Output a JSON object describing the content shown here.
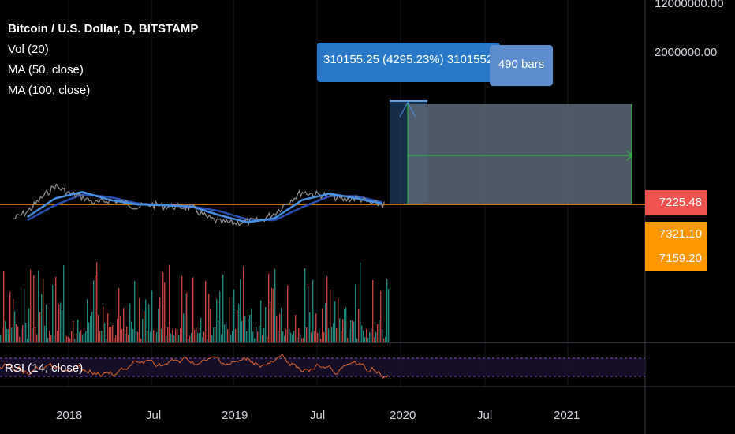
{
  "legend": {
    "title": "Bitcoin / U.S. Dollar, D, BITSTAMP",
    "vol": "Vol (20)",
    "ma50": "MA (50, close)",
    "ma100": "MA (100, close)"
  },
  "price_tags": [
    {
      "value": "7225.48",
      "color": "#ef5350"
    },
    {
      "value": "7321.10",
      "color": "#ff9800"
    },
    {
      "value": "7159.20",
      "color": "#ff9800"
    }
  ],
  "projection": {
    "text": "310155.25 (4295.23%) 3101552",
    "bars": "490 bars"
  },
  "rsi_label": "RSI (14, close)",
  "colors": {
    "background": "#000000",
    "price": "#8c8c8c",
    "ma50": "#4a90e2",
    "ma100": "#2a4fb0",
    "last_price_line": "#ff9800",
    "projection_green": "#26c839",
    "rsi": "#e0642a",
    "vol_up": "#26a69a",
    "vol_down": "#ef5350"
  },
  "chart_data": {
    "type": "line",
    "title": "Bitcoin / U.S. Dollar, D, BITSTAMP",
    "scale": "log",
    "y_ticks": [
      "12000000.00",
      "2000000.00"
    ],
    "x_ticks": [
      "2018",
      "Jul",
      "2019",
      "Jul",
      "2020",
      "Jul",
      "2021"
    ],
    "last_price": 7225.48,
    "ma_values": [
      7321.1,
      7159.2
    ],
    "projection": {
      "change": 310155.25,
      "percent": 4295.23,
      "bars": 490
    },
    "series": [
      {
        "name": "Bitcoin / U.S. Dollar",
        "x": [
          "2017-09",
          "2017-10",
          "2017-11",
          "2017-12",
          "2018-01",
          "2018-02",
          "2018-03",
          "2018-04",
          "2018-05",
          "2018-06",
          "2018-07",
          "2018-08",
          "2018-09",
          "2018-10",
          "2018-11",
          "2018-12",
          "2019-01",
          "2019-02",
          "2019-03",
          "2019-04",
          "2019-05",
          "2019-06",
          "2019-07",
          "2019-08",
          "2019-09",
          "2019-10",
          "2019-11",
          "2019-12"
        ],
        "values": [
          4200,
          5500,
          9000,
          14500,
          11000,
          9500,
          7500,
          8500,
          7800,
          6500,
          7200,
          6800,
          6600,
          6400,
          4500,
          3700,
          3600,
          3800,
          4000,
          5200,
          8000,
          11500,
          10500,
          10000,
          8600,
          9200,
          7500,
          7200
        ]
      },
      {
        "name": "MA (50, close)",
        "x": [
          "2017-10",
          "2017-12",
          "2018-02",
          "2018-04",
          "2018-06",
          "2018-08",
          "2018-10",
          "2018-12",
          "2019-02",
          "2019-04",
          "2019-06",
          "2019-08",
          "2019-10",
          "2019-12"
        ],
        "values": [
          4500,
          9000,
          11500,
          8500,
          7200,
          7000,
          6600,
          4800,
          3700,
          4300,
          8500,
          10800,
          9000,
          7300
        ]
      },
      {
        "name": "MA (100, close)",
        "x": [
          "2017-10",
          "2017-12",
          "2018-02",
          "2018-04",
          "2018-06",
          "2018-08",
          "2018-10",
          "2018-12",
          "2019-02",
          "2019-04",
          "2019-06",
          "2019-08",
          "2019-10",
          "2019-12"
        ],
        "values": [
          4000,
          7000,
          10500,
          9500,
          7500,
          7000,
          6700,
          5600,
          4100,
          4000,
          6500,
          9800,
          9800,
          7600
        ]
      }
    ]
  }
}
